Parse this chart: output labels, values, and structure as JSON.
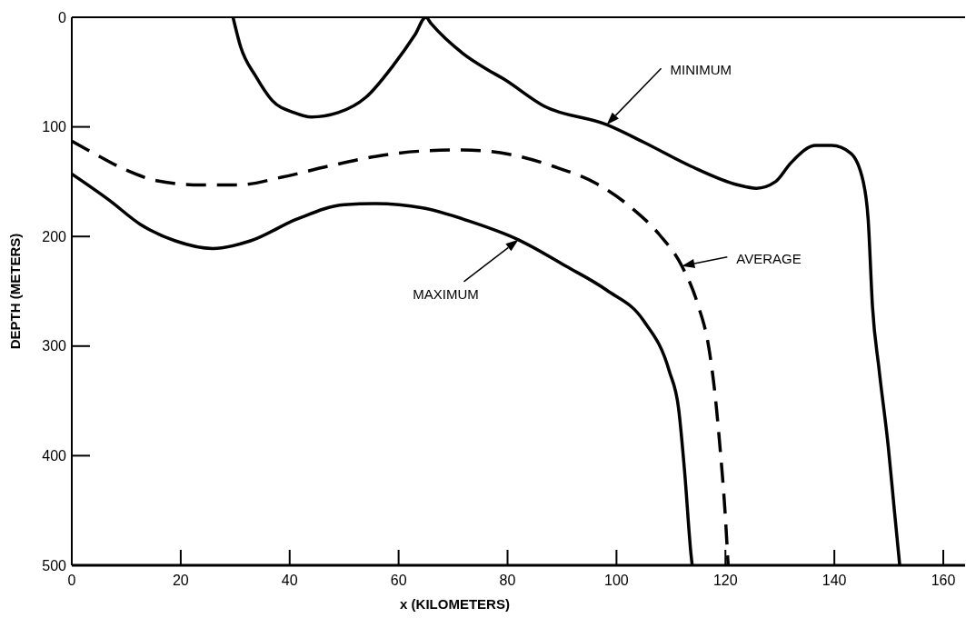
{
  "chart_data": {
    "type": "line",
    "xlabel": "x (KILOMETERS)",
    "ylabel": "DEPTH (METERS)",
    "xlim": [
      0,
      164
    ],
    "xticks": [
      0,
      20,
      40,
      60,
      80,
      100,
      120,
      140,
      160
    ],
    "ylim": [
      500,
      0
    ],
    "yticks": [
      0,
      100,
      200,
      300,
      400,
      500
    ],
    "grid": false,
    "marker": "none",
    "series": [
      {
        "color": "#000000",
        "line_style": "solid",
        "x": [
          29.6,
          31,
          33.8,
          36.8,
          40.8,
          44,
          48.9,
          54,
          59,
          63,
          65,
          66,
          71.8,
          76.4,
          79.2,
          86.7,
          98.2,
          105,
          113.7,
          122.3,
          125.7,
          129.2,
          132,
          136.6,
          139.5,
          143,
          145.3,
          146.2,
          147,
          148.2,
          149.9,
          151,
          152
        ],
        "values": [
          0,
          27,
          54,
          76,
          87,
          91,
          87,
          73,
          44,
          16,
          0,
          6,
          33,
          48,
          56,
          81,
          98,
          114,
          136,
          153,
          156,
          150,
          133,
          117,
          117,
          124,
          150,
          184,
          264,
          321,
          392,
          449,
          500
        ]
      },
      {
        "color": "#000000",
        "line_style": "dashed",
        "x": [
          0,
          4,
          9.8,
          15.5,
          23.6,
          30.5,
          38.5,
          47,
          55.7,
          64.4,
          71.8,
          80.3,
          88.4,
          96.4,
          102.8,
          108,
          112,
          114.8,
          117.1,
          118.2,
          119,
          119.9,
          120.5
        ],
        "values": [
          113,
          124,
          139,
          149,
          153,
          153,
          146,
          136,
          127,
          122,
          121,
          125,
          136,
          152,
          174,
          199,
          227,
          260,
          306,
          349,
          392,
          449,
          500
        ]
      },
      {
        "color": "#000000",
        "line_style": "solid",
        "x": [
          0,
          6.9,
          12.6,
          19,
          25.9,
          32.8,
          41.4,
          50,
          55.7,
          64.4,
          73,
          82,
          90.7,
          98.2,
          105,
          109.7,
          111.4,
          112.5,
          113.7,
          113.9
        ],
        "values": [
          143,
          167,
          189,
          204,
          211,
          204,
          184,
          171,
          170,
          174,
          186,
          203,
          227,
          249,
          277,
          323,
          357,
          414,
          491,
          500
        ]
      }
    ],
    "annotations": [
      "MINIMUM",
      "AVERAGE",
      "MAXIMUM"
    ]
  }
}
